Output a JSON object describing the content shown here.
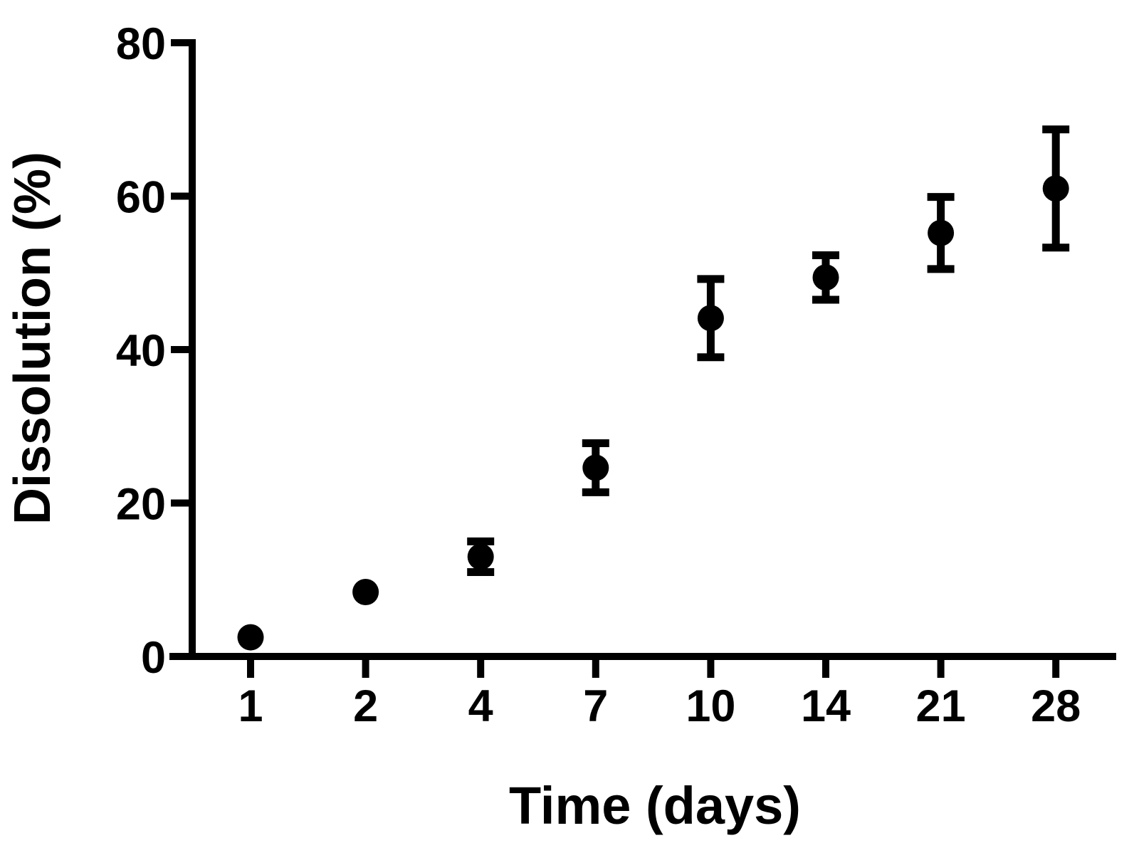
{
  "chart_data": {
    "type": "scatter",
    "title": "",
    "xlabel": "Time (days)",
    "ylabel": "Dissolution (%)",
    "categories": [
      "1",
      "2",
      "4",
      "7",
      "10",
      "14",
      "21",
      "28"
    ],
    "series": [
      {
        "name": "dissolution",
        "values": [
          2.5,
          8.4,
          13.0,
          24.6,
          44.1,
          49.4,
          55.2,
          61.0
        ],
        "errors": [
          0,
          0,
          2.0,
          3.2,
          5.1,
          2.9,
          4.7,
          7.7
        ]
      }
    ],
    "ylim": [
      0,
      80
    ],
    "yticks": [
      0,
      20,
      40,
      60,
      80
    ],
    "x_spacing": "categorical-even",
    "grid": false,
    "legend": "none",
    "marker": "filled-circle",
    "error_bars": "vertical-with-caps",
    "color": "#000000",
    "background": "#ffffff"
  }
}
